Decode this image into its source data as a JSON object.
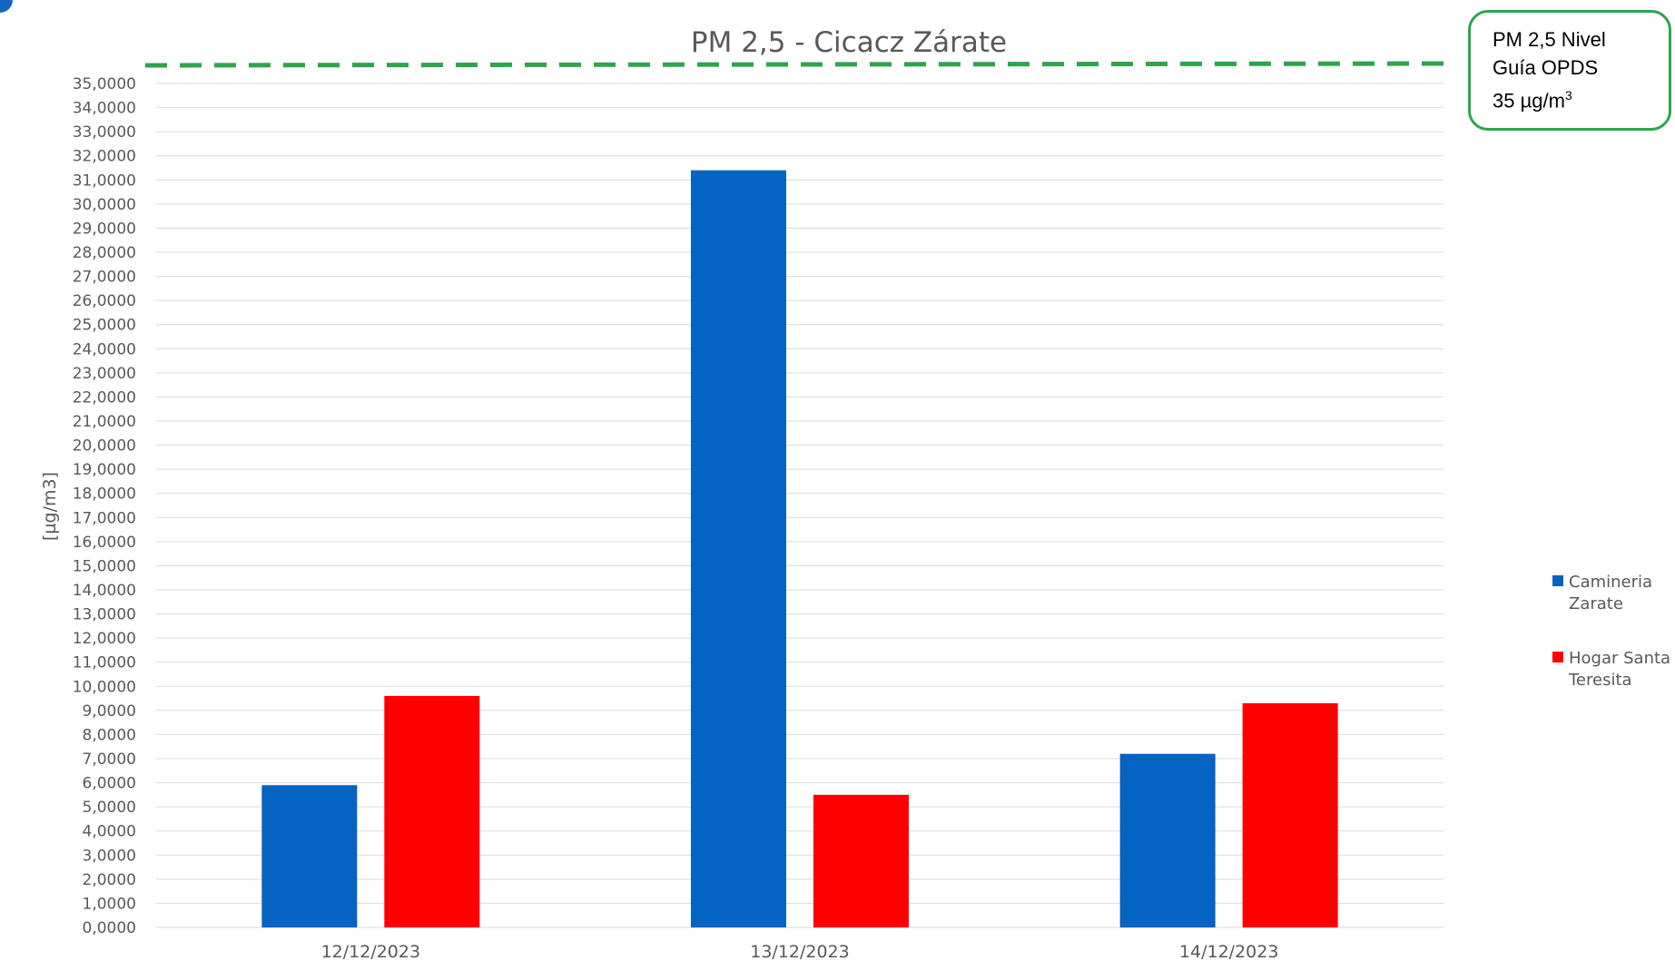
{
  "chart_data": {
    "type": "bar",
    "title": "PM 2,5 - Cicacz Zárate",
    "ylabel": "[µg/m3]",
    "xlabel": "",
    "ylim": [
      0,
      35
    ],
    "y_tick_step": 1,
    "y_tick_decimals": 4,
    "decimal_separator": ",",
    "thousands_separator": ",",
    "categories": [
      "12/12/2023",
      "13/12/2023",
      "14/12/2023"
    ],
    "series": [
      {
        "name": "Camineria Zarate",
        "color": "#0563c1",
        "values": [
          5.9,
          31.4,
          7.2
        ]
      },
      {
        "name": "Hogar Santa Teresita",
        "color": "#ff0000",
        "values": [
          9.6,
          5.5,
          9.3
        ]
      }
    ],
    "reference_line": {
      "value": 35,
      "color": "#2ea44f",
      "style": "dashed"
    },
    "grid": true,
    "legend_placement": "right"
  },
  "annotation": {
    "line1": "PM 2,5 Nivel",
    "line2": "Guía OPDS",
    "line3_prefix": "35 µg/m",
    "line3_sup": "3",
    "border_color": "#2ea44f"
  },
  "legend": [
    {
      "line1": "Camineria",
      "line2": "Zarate",
      "color": "#0563c1"
    },
    {
      "line1": "Hogar Santa",
      "line2": "Teresita",
      "color": "#ff0000"
    }
  ],
  "accent_mark_color": "#1565c0"
}
